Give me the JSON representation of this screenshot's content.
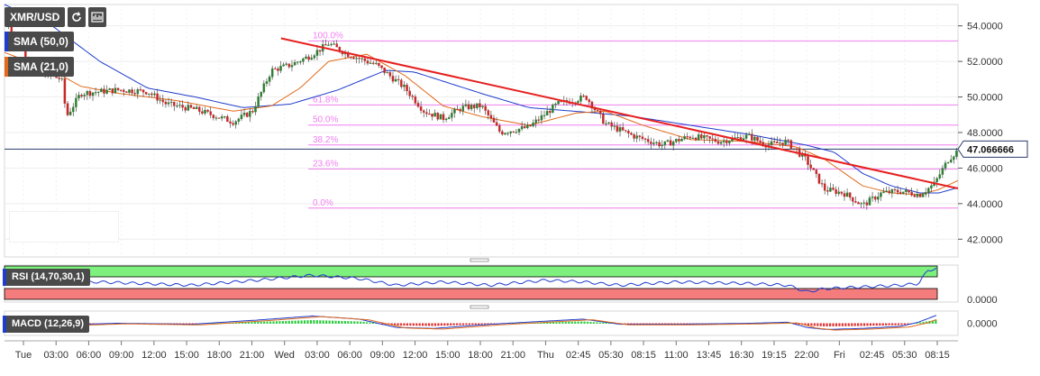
{
  "toolbar": {
    "symbol": "XMR/USD",
    "refresh_icon": "refresh-icon",
    "settings_icon": "indicator-icon"
  },
  "legends": {
    "sma50": {
      "label": "SMA (50,0)",
      "color": "#1f3dcc"
    },
    "sma21": {
      "label": "SMA (21,0)",
      "color": "#e06a1b"
    },
    "rsi": {
      "label": "RSI (14,70,30,1)",
      "color": "#1f3dcc"
    },
    "macd": {
      "label": "MACD (12,26,9)",
      "color": "#1f3dcc"
    }
  },
  "price_label": "47.066666",
  "rsi_axis_label": "0.0000",
  "macd_axis_label": "0.0000",
  "chart_data": {
    "type": "candlestick",
    "ylim": [
      41.0,
      55.2
    ],
    "y_ticks": [
      "54.0000",
      "52.0000",
      "50.0000",
      "48.0000",
      "46.0000",
      "44.0000",
      "42.0000"
    ],
    "y_tick_values": [
      54,
      52,
      50,
      48,
      46,
      44,
      42
    ],
    "x_ticks": [
      "Tue",
      "03:00",
      "06:00",
      "09:00",
      "12:00",
      "15:00",
      "18:00",
      "21:00",
      "Wed",
      "03:00",
      "06:00",
      "09:00",
      "12:00",
      "15:00",
      "18:00",
      "21:00",
      "Thu",
      "02:45",
      "05:30",
      "08:15",
      "11:00",
      "13:45",
      "16:30",
      "19:15",
      "22:00",
      "Fri",
      "02:45",
      "05:30",
      "08:15"
    ],
    "fib_levels": [
      {
        "label": "100.0%",
        "value": 53.15
      },
      {
        "label": "61.8%",
        "value": 49.55
      },
      {
        "label": "50.0%",
        "value": 48.42
      },
      {
        "label": "38.2%",
        "value": 47.3
      },
      {
        "label": "23.6%",
        "value": 45.95
      },
      {
        "label": "0.0%",
        "value": 43.75
      }
    ],
    "current_price": 47.066666,
    "trendline": [
      [
        53.3,
        0.29
      ],
      [
        45.15,
        0.975
      ]
    ],
    "price_anchors": [
      [
        0.0,
        54.5
      ],
      [
        0.03,
        51.5
      ],
      [
        0.06,
        51.0
      ],
      [
        0.065,
        48.9
      ],
      [
        0.08,
        50.2
      ],
      [
        0.12,
        50.4
      ],
      [
        0.15,
        50.3
      ],
      [
        0.17,
        49.6
      ],
      [
        0.2,
        49.3
      ],
      [
        0.24,
        48.6
      ],
      [
        0.26,
        49.2
      ],
      [
        0.28,
        51.5
      ],
      [
        0.3,
        51.8
      ],
      [
        0.32,
        52.3
      ],
      [
        0.34,
        53.0
      ],
      [
        0.36,
        52.4
      ],
      [
        0.39,
        51.8
      ],
      [
        0.42,
        50.5
      ],
      [
        0.44,
        49.2
      ],
      [
        0.46,
        48.8
      ],
      [
        0.48,
        49.4
      ],
      [
        0.5,
        49.5
      ],
      [
        0.52,
        48.0
      ],
      [
        0.55,
        48.3
      ],
      [
        0.58,
        49.6
      ],
      [
        0.61,
        50.0
      ],
      [
        0.63,
        48.5
      ],
      [
        0.66,
        47.8
      ],
      [
        0.69,
        47.3
      ],
      [
        0.72,
        47.8
      ],
      [
        0.75,
        47.5
      ],
      [
        0.78,
        47.8
      ],
      [
        0.8,
        47.3
      ],
      [
        0.82,
        47.5
      ],
      [
        0.84,
        46.5
      ],
      [
        0.86,
        44.8
      ],
      [
        0.88,
        44.6
      ],
      [
        0.9,
        43.9
      ],
      [
        0.92,
        44.6
      ],
      [
        0.94,
        44.7
      ],
      [
        0.96,
        44.5
      ],
      [
        0.975,
        45.1
      ],
      [
        0.99,
        46.5
      ],
      [
        1.0,
        47.0
      ]
    ],
    "sma50_anchors": [
      [
        0.0,
        55.2
      ],
      [
        0.05,
        54.0
      ],
      [
        0.1,
        52.0
      ],
      [
        0.15,
        50.5
      ],
      [
        0.2,
        50.0
      ],
      [
        0.25,
        49.4
      ],
      [
        0.3,
        49.6
      ],
      [
        0.35,
        50.4
      ],
      [
        0.4,
        51.5
      ],
      [
        0.43,
        51.4
      ],
      [
        0.5,
        50.2
      ],
      [
        0.55,
        49.4
      ],
      [
        0.62,
        49.1
      ],
      [
        0.66,
        48.9
      ],
      [
        0.72,
        48.4
      ],
      [
        0.78,
        47.9
      ],
      [
        0.84,
        47.3
      ],
      [
        0.87,
        46.9
      ],
      [
        0.9,
        45.7
      ],
      [
        0.93,
        45.0
      ],
      [
        0.96,
        44.6
      ],
      [
        0.98,
        44.6
      ],
      [
        1.0,
        44.9
      ]
    ],
    "sma21_anchors": [
      [
        0.0,
        52.5
      ],
      [
        0.05,
        51.5
      ],
      [
        0.08,
        50.6
      ],
      [
        0.12,
        50.2
      ],
      [
        0.18,
        49.8
      ],
      [
        0.24,
        49.2
      ],
      [
        0.28,
        49.5
      ],
      [
        0.31,
        50.5
      ],
      [
        0.34,
        52.0
      ],
      [
        0.38,
        52.4
      ],
      [
        0.42,
        51.2
      ],
      [
        0.46,
        49.5
      ],
      [
        0.5,
        48.9
      ],
      [
        0.55,
        48.4
      ],
      [
        0.6,
        49.1
      ],
      [
        0.63,
        49.2
      ],
      [
        0.67,
        48.4
      ],
      [
        0.72,
        47.6
      ],
      [
        0.78,
        47.5
      ],
      [
        0.83,
        47.2
      ],
      [
        0.86,
        46.5
      ],
      [
        0.9,
        45.0
      ],
      [
        0.93,
        44.6
      ],
      [
        0.96,
        44.5
      ],
      [
        0.98,
        44.8
      ],
      [
        1.0,
        45.3
      ]
    ],
    "rsi_anchors": [
      [
        0.0,
        0.35
      ],
      [
        0.05,
        0.5
      ],
      [
        0.1,
        0.45
      ],
      [
        0.2,
        0.55
      ],
      [
        0.27,
        0.4
      ],
      [
        0.33,
        0.25
      ],
      [
        0.38,
        0.35
      ],
      [
        0.42,
        0.55
      ],
      [
        0.47,
        0.45
      ],
      [
        0.52,
        0.55
      ],
      [
        0.58,
        0.4
      ],
      [
        0.62,
        0.45
      ],
      [
        0.66,
        0.55
      ],
      [
        0.72,
        0.45
      ],
      [
        0.8,
        0.5
      ],
      [
        0.84,
        0.55
      ],
      [
        0.86,
        0.75
      ],
      [
        0.88,
        0.65
      ],
      [
        0.92,
        0.6
      ],
      [
        0.96,
        0.55
      ],
      [
        0.98,
        0.5
      ],
      [
        0.99,
        0.1
      ],
      [
        1.0,
        0.05
      ]
    ],
    "macd_anchors": [
      [
        0.0,
        0.55
      ],
      [
        0.05,
        0.6
      ],
      [
        0.12,
        0.5
      ],
      [
        0.2,
        0.55
      ],
      [
        0.27,
        0.35
      ],
      [
        0.33,
        0.15
      ],
      [
        0.38,
        0.3
      ],
      [
        0.42,
        0.7
      ],
      [
        0.46,
        0.75
      ],
      [
        0.52,
        0.55
      ],
      [
        0.58,
        0.4
      ],
      [
        0.62,
        0.3
      ],
      [
        0.66,
        0.55
      ],
      [
        0.72,
        0.55
      ],
      [
        0.8,
        0.5
      ],
      [
        0.84,
        0.45
      ],
      [
        0.86,
        0.7
      ],
      [
        0.88,
        0.8
      ],
      [
        0.92,
        0.75
      ],
      [
        0.96,
        0.65
      ],
      [
        0.98,
        0.45
      ],
      [
        1.0,
        0.1
      ]
    ]
  }
}
